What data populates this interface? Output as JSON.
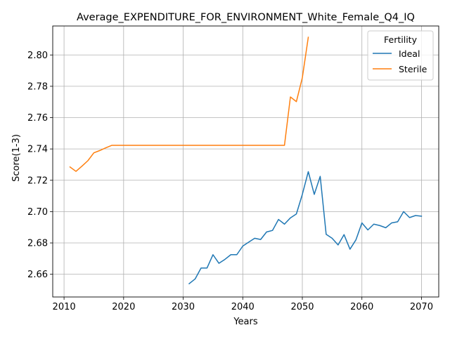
{
  "chart_data": {
    "type": "line",
    "title": "Average_EXPENDITURE_FOR_ENVIRONMENT_White_Female_Q4_IQ",
    "xlabel": "Years",
    "ylabel": "Score(1-3)",
    "xlim": [
      2008.1,
      2072.9
    ],
    "ylim": [
      2.6455,
      2.8185
    ],
    "xticks": [
      2010,
      2020,
      2030,
      2040,
      2050,
      2060,
      2070
    ],
    "yticks": [
      2.66,
      2.68,
      2.7,
      2.72,
      2.74,
      2.76,
      2.78,
      2.8
    ],
    "grid": true,
    "legend": {
      "title": "Fertility",
      "position": "top-right"
    },
    "series": [
      {
        "name": "Ideal",
        "color": "#1f77b4",
        "x": [
          2031,
          2032,
          2033,
          2034,
          2035,
          2036,
          2037,
          2038,
          2039,
          2040,
          2041,
          2042,
          2043,
          2044,
          2045,
          2046,
          2047,
          2048,
          2049,
          2050,
          2051,
          2052,
          2053,
          2054,
          2055,
          2056,
          2057,
          2058,
          2059,
          2060,
          2061,
          2062,
          2063,
          2064,
          2065,
          2066,
          2067,
          2068,
          2069,
          2070
        ],
        "y": [
          2.654,
          2.657,
          2.664,
          2.664,
          2.6725,
          2.667,
          2.6695,
          2.6725,
          2.6725,
          2.678,
          2.6805,
          2.683,
          2.6822,
          2.687,
          2.688,
          2.695,
          2.692,
          2.696,
          2.6985,
          2.711,
          2.7255,
          2.711,
          2.7225,
          2.6855,
          2.683,
          2.6787,
          2.6853,
          2.676,
          2.682,
          2.6928,
          2.6883,
          2.692,
          2.6911,
          2.6897,
          2.6928,
          2.6935,
          2.7,
          2.6962,
          2.6975,
          2.6971
        ]
      },
      {
        "name": "Sterile",
        "color": "#ff7f0e",
        "x": [
          2011,
          2012,
          2013,
          2014,
          2015,
          2016,
          2017,
          2018,
          2019,
          2020,
          2021,
          2022,
          2023,
          2024,
          2025,
          2026,
          2027,
          2028,
          2029,
          2030,
          2031,
          2032,
          2033,
          2034,
          2035,
          2036,
          2037,
          2038,
          2039,
          2040,
          2041,
          2042,
          2043,
          2044,
          2045,
          2046,
          2047,
          2048,
          2049,
          2050,
          2051
        ],
        "y": [
          2.7285,
          2.7257,
          2.729,
          2.7325,
          2.7375,
          2.739,
          2.7407,
          2.7423,
          2.7423,
          2.7423,
          2.7423,
          2.7423,
          2.7423,
          2.7423,
          2.7423,
          2.7423,
          2.7423,
          2.7423,
          2.7423,
          2.7423,
          2.7423,
          2.7423,
          2.7423,
          2.7423,
          2.7423,
          2.7423,
          2.7423,
          2.7423,
          2.7423,
          2.7423,
          2.7423,
          2.7423,
          2.7423,
          2.7423,
          2.7423,
          2.7423,
          2.7423,
          2.7732,
          2.7702,
          2.7855,
          2.8113
        ]
      }
    ]
  }
}
